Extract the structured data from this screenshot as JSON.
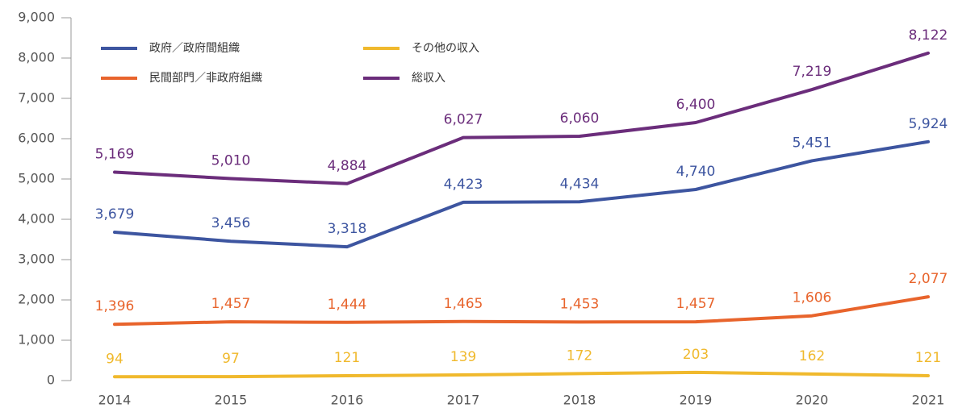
{
  "chart_data": {
    "type": "line",
    "categories": [
      "2014",
      "2015",
      "2016",
      "2017",
      "2018",
      "2019",
      "2020",
      "2021"
    ],
    "series": [
      {
        "name": "政府／政府間組織",
        "color": "#3d55a0",
        "values": [
          3679,
          3456,
          3318,
          4423,
          4434,
          4740,
          5451,
          5924
        ],
        "value_labels": [
          "3,679",
          "3,456",
          "3,318",
          "4,423",
          "4,434",
          "4,740",
          "5,451",
          "5,924"
        ]
      },
      {
        "name": "民間部門／非政府組織",
        "color": "#e8642c",
        "values": [
          1396,
          1457,
          1444,
          1465,
          1453,
          1457,
          1606,
          2077
        ],
        "value_labels": [
          "1,396",
          "1,457",
          "1,444",
          "1,465",
          "1,453",
          "1,457",
          "1,606",
          "2,077"
        ]
      },
      {
        "name": "その他の収入",
        "color": "#f0b92d",
        "values": [
          94,
          97,
          121,
          139,
          172,
          203,
          162,
          121
        ]
      },
      {
        "name": "総収入",
        "color": "#6b2d7b",
        "values": [
          5169,
          5010,
          4884,
          6027,
          6060,
          6400,
          7219,
          8122
        ],
        "value_labels": [
          "5,169",
          "5,010",
          "4,884",
          "6,027",
          "6,060",
          "6,400",
          "7,219",
          "8,122"
        ]
      }
    ],
    "ylim": [
      0,
      9000
    ],
    "yticks": [
      0,
      {
        "value": 1000,
        "label": "1,000"
      },
      {
        "value": 2000,
        "label": "2,000"
      },
      {
        "value": 3000,
        "label": "3,000"
      },
      {
        "value": 4000,
        "label": "4,000"
      },
      {
        "value": 5000,
        "label": "5,000"
      },
      {
        "value": 6000,
        "label": "6,000"
      },
      {
        "value": 7000,
        "label": "7,000"
      },
      {
        "value": 8000,
        "label": "8,000"
      },
      {
        "value": 9000,
        "label": "9,000"
      }
    ]
  }
}
